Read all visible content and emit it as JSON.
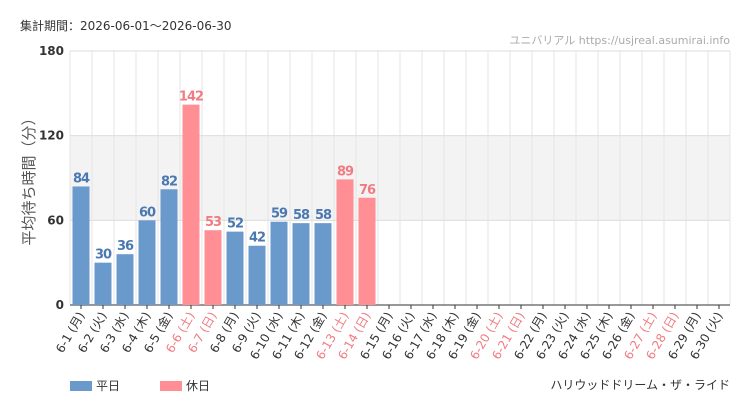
{
  "chart_data": {
    "type": "bar",
    "subtitle": "集計期間：2026-06-01～2026-06-30",
    "watermark": "ユニバリアル  https://usjreal.asumirai.info",
    "y_label": "平均待ち時間（分）",
    "footer": "ハリウッドドリーム・ザ・ライド",
    "categories": [
      "6-1 (月)",
      "6-2 (火)",
      "6-3 (水)",
      "6-4 (木)",
      "6-5 (金)",
      "6-6 (土)",
      "6-7 (日)",
      "6-8 (月)",
      "6-9 (火)",
      "6-10 (水)",
      "6-11 (木)",
      "6-12 (金)",
      "6-13 (土)",
      "6-14 (日)",
      "6-15 (月)",
      "6-16 (火)",
      "6-17 (水)",
      "6-18 (木)",
      "6-19 (金)",
      "6-20 (土)",
      "6-21 (日)",
      "6-22 (月)",
      "6-23 (火)",
      "6-24 (水)",
      "6-25 (木)",
      "6-26 (金)",
      "6-27 (土)",
      "6-28 (日)",
      "6-29 (月)",
      "6-30 (火)"
    ],
    "category_label_colors": [
      "#333",
      "#333",
      "#333",
      "#333",
      "#333",
      "#f07c82",
      "#f07c82",
      "#333",
      "#333",
      "#333",
      "#333",
      "#333",
      "#f07c82",
      "#f07c82",
      "#333",
      "#333",
      "#333",
      "#333",
      "#333",
      "#f07c82",
      "#f07c82",
      "#333",
      "#333",
      "#333",
      "#333",
      "#333",
      "#f07c82",
      "#f07c82",
      "#333",
      "#333"
    ],
    "series": [
      {
        "name": "平日",
        "color": "#6a99cb",
        "label_color": "#4a78b0",
        "values": [
          84,
          30,
          36,
          60,
          82,
          null,
          null,
          52,
          42,
          59,
          58,
          58,
          null,
          null,
          null,
          null,
          null,
          null,
          null,
          null,
          null,
          null,
          null,
          null,
          null,
          null,
          null,
          null,
          null,
          null
        ]
      },
      {
        "name": "休日",
        "color": "#ff8f94",
        "label_color": "#f07c82",
        "values": [
          null,
          null,
          null,
          null,
          null,
          142,
          53,
          null,
          null,
          null,
          null,
          null,
          89,
          76,
          null,
          null,
          null,
          null,
          null,
          null,
          null,
          null,
          null,
          null,
          null,
          null,
          null,
          null,
          null,
          null
        ]
      }
    ],
    "ylim": [
      0,
      180
    ],
    "yticks": [
      0,
      60,
      120,
      180
    ],
    "grid": true
  }
}
